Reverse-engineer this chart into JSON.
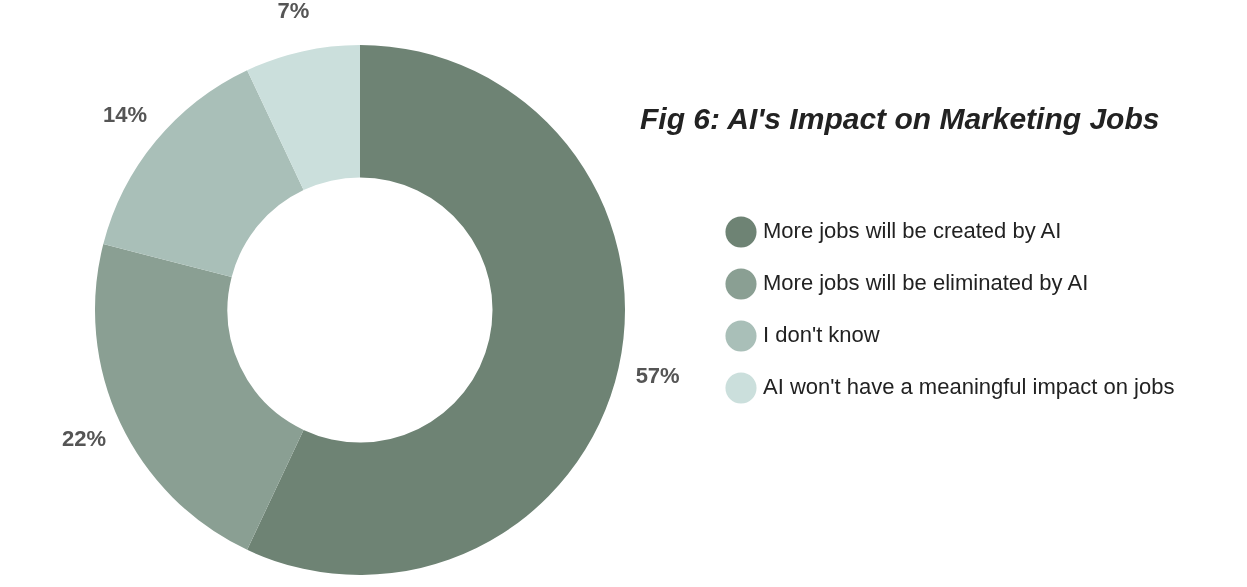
{
  "chart_data": {
    "type": "donut",
    "title": "Fig 6: AI's Impact on Marketing Jobs",
    "categories": [
      "More jobs will be created by AI",
      "More jobs will be eliminated by AI",
      "I don't know",
      "AI won't have a meaningful impact on jobs"
    ],
    "values": [
      57,
      22,
      14,
      7
    ],
    "colors": [
      "#6e8374",
      "#8a9f93",
      "#a9bfb8",
      "#cbdfdc"
    ],
    "value_labels": [
      "57%",
      "22%",
      "14%",
      "7%"
    ],
    "legend": "right"
  }
}
